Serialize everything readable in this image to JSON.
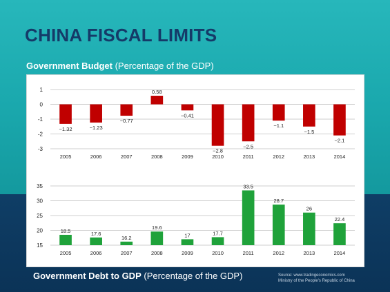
{
  "slide": {
    "title": "CHINA FISCAL LIMITS",
    "top_subtitle_bold": "Government Budget",
    "top_subtitle_rest": " (Percentage of the GDP)",
    "bottom_subtitle_bold": "Government Debt to GDP",
    "bottom_subtitle_rest": " (Percentage of the GDP)",
    "source_line1": "Source: www.tradingeconomics.com",
    "source_line2": "Ministry of the People's Republic of China"
  },
  "colors": {
    "budget_bar": "#c00000",
    "debt_bar": "#1fa23a",
    "gridline": "#bfbfbf"
  },
  "chart_data": [
    {
      "type": "bar",
      "categories": [
        "2005",
        "2006",
        "2007",
        "2008",
        "2009",
        "2010",
        "2011",
        "2012",
        "2013",
        "2014"
      ],
      "values": [
        -1.32,
        -1.23,
        -0.77,
        0.58,
        -0.41,
        -2.8,
        -2.5,
        -1.1,
        -1.5,
        -2.1
      ],
      "value_labels": [
        "−1.32",
        "−1.23",
        "−0.77",
        "0.58",
        "−0.41",
        "−2.8",
        "−2.5",
        "−1.1",
        "−1.5",
        "−2.1"
      ],
      "ylim": [
        -3,
        1
      ],
      "yticks": [
        1,
        0,
        -1,
        -2,
        -3
      ],
      "ytick_labels": [
        "1",
        "0",
        "-1",
        "-2",
        "-3"
      ],
      "grid": true
    },
    {
      "type": "bar",
      "categories": [
        "2005",
        "2006",
        "2007",
        "2008",
        "2009",
        "2010",
        "2011",
        "2012",
        "2013",
        "2014"
      ],
      "values": [
        18.5,
        17.6,
        16.2,
        19.6,
        17,
        17.7,
        33.5,
        28.7,
        26,
        22.4
      ],
      "value_labels": [
        "18.5",
        "17.6",
        "16.2",
        "19.6",
        "17",
        "17.7",
        "33.5",
        "28.7",
        "26",
        "22.4"
      ],
      "ylim": [
        15,
        35
      ],
      "yticks": [
        35,
        30,
        25,
        20,
        15
      ],
      "ytick_labels": [
        "35",
        "30",
        "25",
        "20",
        "15"
      ],
      "grid": true
    }
  ]
}
